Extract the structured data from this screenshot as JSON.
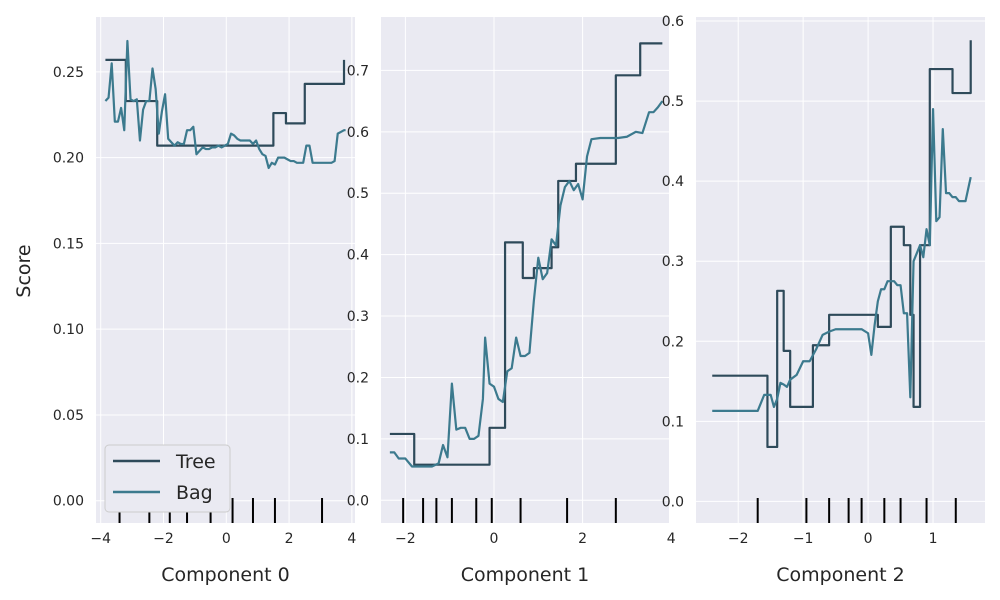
{
  "figure": {
    "ylabel": "Score",
    "colors": {
      "background": "#ffffff",
      "axes_face": "#eaeaf2",
      "grid": "#ffffff",
      "tree": "#2e4a5a",
      "bag": "#3c7a8e",
      "rug": "#000000",
      "legend_face": "#eaeaf2",
      "legend_edge": "#cccccc"
    }
  },
  "legend": {
    "placement": "lower-left",
    "entries": [
      {
        "label": "Tree",
        "color": "#2e4a5a"
      },
      {
        "label": "Bag",
        "color": "#3c7a8e"
      }
    ]
  },
  "chart_data": [
    {
      "type": "line",
      "xlabel": "Component 0",
      "ylabel": "Score",
      "xlim": [
        -4.15,
        4.1
      ],
      "ylim": [
        -0.013,
        0.282
      ],
      "xticks": [
        -4,
        -2,
        0,
        2,
        4
      ],
      "xtick_labels": [
        "−4",
        "−2",
        "0",
        "2",
        "4"
      ],
      "yticks": [
        0.0,
        0.05,
        0.1,
        0.15,
        0.2,
        0.25
      ],
      "ytick_labels": [
        "0.00",
        "0.05",
        "0.10",
        "0.15",
        "0.20",
        "0.25"
      ],
      "grid": true,
      "legend": true,
      "rug": [
        -3.4,
        -2.45,
        -1.8,
        -1.25,
        -0.5,
        0.2,
        0.85,
        1.55,
        3.05
      ],
      "series": [
        {
          "name": "Tree",
          "step": true,
          "x": [
            -3.85,
            -3.3,
            -3.2,
            -2.5,
            -2.2,
            0.4,
            1.5,
            1.9,
            2.5,
            3.75
          ],
          "y": [
            0.257,
            0.257,
            0.233,
            0.233,
            0.207,
            0.207,
            0.226,
            0.22,
            0.243,
            0.257
          ]
        },
        {
          "name": "Bag",
          "step": false,
          "x": [
            -3.85,
            -3.75,
            -3.65,
            -3.55,
            -3.45,
            -3.35,
            -3.25,
            -3.15,
            -3.05,
            -2.95,
            -2.85,
            -2.75,
            -2.65,
            -2.55,
            -2.45,
            -2.35,
            -2.25,
            -2.15,
            -2.05,
            -1.95,
            -1.85,
            -1.75,
            -1.65,
            -1.55,
            -1.45,
            -1.35,
            -1.25,
            -1.15,
            -1.05,
            -0.95,
            -0.85,
            -0.75,
            -0.65,
            -0.55,
            -0.45,
            -0.35,
            -0.25,
            -0.15,
            -0.05,
            0.05,
            0.15,
            0.25,
            0.35,
            0.45,
            0.55,
            0.65,
            0.75,
            0.85,
            0.95,
            1.05,
            1.15,
            1.25,
            1.35,
            1.45,
            1.55,
            1.65,
            1.75,
            1.85,
            1.95,
            2.05,
            2.15,
            2.25,
            2.35,
            2.45,
            2.55,
            2.65,
            2.75,
            2.85,
            2.95,
            3.05,
            3.15,
            3.25,
            3.35,
            3.45,
            3.55,
            3.65,
            3.75,
            3.8
          ],
          "y": [
            0.233,
            0.235,
            0.255,
            0.221,
            0.221,
            0.229,
            0.216,
            0.268,
            0.234,
            0.233,
            0.234,
            0.21,
            0.228,
            0.233,
            0.233,
            0.252,
            0.24,
            0.214,
            0.227,
            0.237,
            0.211,
            0.209,
            0.207,
            0.209,
            0.208,
            0.208,
            0.216,
            0.216,
            0.218,
            0.202,
            0.204,
            0.206,
            0.205,
            0.205,
            0.206,
            0.206,
            0.207,
            0.206,
            0.207,
            0.208,
            0.214,
            0.213,
            0.211,
            0.21,
            0.21,
            0.21,
            0.21,
            0.208,
            0.21,
            0.205,
            0.202,
            0.201,
            0.194,
            0.197,
            0.196,
            0.2,
            0.2,
            0.2,
            0.199,
            0.198,
            0.198,
            0.197,
            0.197,
            0.197,
            0.207,
            0.207,
            0.197,
            0.197,
            0.197,
            0.197,
            0.197,
            0.197,
            0.197,
            0.198,
            0.214,
            0.215,
            0.216,
            0.216
          ]
        }
      ]
    },
    {
      "type": "line",
      "xlabel": "Component 1",
      "ylabel": "",
      "xlim": [
        -2.55,
        3.95
      ],
      "ylim": [
        -0.037,
        0.787
      ],
      "xticks": [
        -2,
        0,
        2,
        4
      ],
      "xtick_labels": [
        "−2",
        "0",
        "2",
        "4"
      ],
      "yticks": [
        0.0,
        0.1,
        0.2,
        0.3,
        0.4,
        0.5,
        0.6,
        0.7
      ],
      "ytick_labels": [
        "0.0",
        "0.1",
        "0.2",
        "0.3",
        "0.4",
        "0.5",
        "0.6",
        "0.7"
      ],
      "grid": true,
      "legend": false,
      "rug": [
        -2.05,
        -1.6,
        -1.3,
        -0.95,
        -0.4,
        -0.05,
        0.6,
        1.65,
        2.75
      ],
      "series": [
        {
          "name": "Tree",
          "step": true,
          "x": [
            -2.35,
            -1.8,
            -0.1,
            0.25,
            0.65,
            0.9,
            1.3,
            1.45,
            1.85,
            2.3,
            2.75,
            3.3,
            3.8
          ],
          "y": [
            0.108,
            0.058,
            0.118,
            0.42,
            0.362,
            0.378,
            0.412,
            0.52,
            0.548,
            0.548,
            0.692,
            0.744,
            0.744
          ]
        },
        {
          "name": "Bag",
          "step": false,
          "x": [
            -2.35,
            -2.25,
            -2.15,
            -2.0,
            -1.85,
            -1.7,
            -1.55,
            -1.4,
            -1.25,
            -1.15,
            -1.05,
            -0.95,
            -0.85,
            -0.75,
            -0.65,
            -0.55,
            -0.45,
            -0.35,
            -0.25,
            -0.2,
            -0.1,
            0.0,
            0.1,
            0.2,
            0.3,
            0.4,
            0.5,
            0.6,
            0.7,
            0.8,
            0.9,
            1.0,
            1.1,
            1.2,
            1.3,
            1.4,
            1.5,
            1.6,
            1.7,
            1.8,
            1.9,
            2.0,
            2.1,
            2.2,
            2.4,
            2.6,
            2.8,
            3.0,
            3.2,
            3.35,
            3.5,
            3.6,
            3.7,
            3.8
          ],
          "y": [
            0.078,
            0.078,
            0.068,
            0.068,
            0.055,
            0.055,
            0.055,
            0.055,
            0.06,
            0.09,
            0.07,
            0.19,
            0.115,
            0.118,
            0.118,
            0.1,
            0.1,
            0.105,
            0.165,
            0.265,
            0.19,
            0.185,
            0.165,
            0.16,
            0.21,
            0.215,
            0.265,
            0.235,
            0.235,
            0.24,
            0.325,
            0.395,
            0.36,
            0.37,
            0.425,
            0.415,
            0.48,
            0.51,
            0.52,
            0.505,
            0.515,
            0.49,
            0.56,
            0.588,
            0.59,
            0.59,
            0.59,
            0.592,
            0.6,
            0.598,
            0.632,
            0.632,
            0.64,
            0.65
          ]
        }
      ]
    },
    {
      "type": "line",
      "xlabel": "Component 2",
      "ylabel": "",
      "xlim": [
        -2.65,
        1.8
      ],
      "ylim": [
        -0.027,
        0.605
      ],
      "xticks": [
        -2,
        -1,
        0,
        1
      ],
      "xtick_labels": [
        "−2",
        "−1",
        "0",
        "1"
      ],
      "yticks": [
        0.0,
        0.1,
        0.2,
        0.3,
        0.4,
        0.5,
        0.6
      ],
      "ytick_labels": [
        "0.0",
        "0.1",
        "0.2",
        "0.3",
        "0.4",
        "0.5",
        "0.6"
      ],
      "grid": true,
      "legend": false,
      "rug": [
        -1.7,
        -0.95,
        -0.6,
        -0.3,
        -0.1,
        0.25,
        0.5,
        0.9,
        1.35
      ],
      "series": [
        {
          "name": "Tree",
          "step": true,
          "x": [
            -2.4,
            -1.55,
            -1.4,
            -1.3,
            -1.2,
            -0.85,
            -0.6,
            -0.35,
            0.15,
            0.35,
            0.55,
            0.65,
            0.7,
            0.8,
            0.95,
            1.3,
            1.58
          ],
          "y": [
            0.157,
            0.068,
            0.263,
            0.188,
            0.118,
            0.195,
            0.233,
            0.233,
            0.218,
            0.343,
            0.32,
            0.233,
            0.118,
            0.32,
            0.54,
            0.51,
            0.576
          ]
        },
        {
          "name": "Bag",
          "step": false,
          "x": [
            -2.4,
            -2.2,
            -2.0,
            -1.85,
            -1.7,
            -1.6,
            -1.5,
            -1.45,
            -1.4,
            -1.35,
            -1.3,
            -1.25,
            -1.2,
            -1.1,
            -1.0,
            -0.9,
            -0.8,
            -0.7,
            -0.6,
            -0.5,
            -0.4,
            -0.3,
            -0.2,
            -0.1,
            0.0,
            0.05,
            0.1,
            0.15,
            0.2,
            0.25,
            0.3,
            0.35,
            0.4,
            0.45,
            0.5,
            0.55,
            0.6,
            0.65,
            0.7,
            0.75,
            0.8,
            0.85,
            0.9,
            0.95,
            1.0,
            1.05,
            1.1,
            1.15,
            1.2,
            1.25,
            1.3,
            1.35,
            1.4,
            1.45,
            1.5,
            1.58
          ],
          "y": [
            0.113,
            0.113,
            0.113,
            0.113,
            0.113,
            0.133,
            0.133,
            0.118,
            0.128,
            0.148,
            0.146,
            0.143,
            0.152,
            0.158,
            0.175,
            0.175,
            0.19,
            0.208,
            0.212,
            0.215,
            0.215,
            0.215,
            0.215,
            0.215,
            0.21,
            0.183,
            0.22,
            0.25,
            0.265,
            0.265,
            0.275,
            0.275,
            0.275,
            0.27,
            0.27,
            0.235,
            0.235,
            0.13,
            0.3,
            0.31,
            0.32,
            0.305,
            0.34,
            0.32,
            0.49,
            0.35,
            0.355,
            0.465,
            0.385,
            0.385,
            0.38,
            0.38,
            0.375,
            0.375,
            0.375,
            0.405
          ]
        }
      ]
    }
  ]
}
